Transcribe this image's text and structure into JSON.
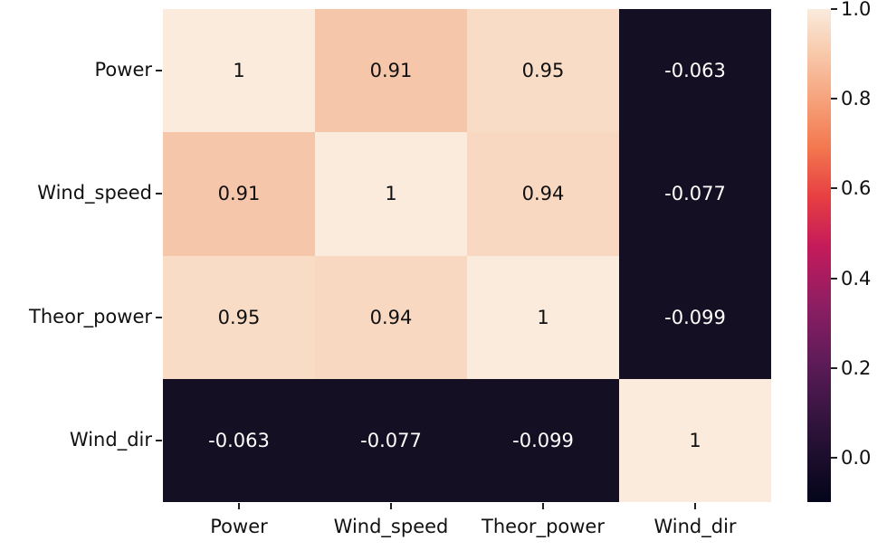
{
  "chart_data": {
    "type": "heatmap",
    "title": "",
    "xlabel": "",
    "ylabel": "",
    "x_labels": [
      "Power",
      "Wind_speed",
      "Theor_power",
      "Wind_dir"
    ],
    "y_labels": [
      "Power",
      "Wind_speed",
      "Theor_power",
      "Wind_dir"
    ],
    "values": [
      [
        1,
        0.91,
        0.95,
        -0.063
      ],
      [
        0.91,
        1,
        0.94,
        -0.077
      ],
      [
        0.95,
        0.94,
        1,
        -0.099
      ],
      [
        -0.063,
        -0.077,
        -0.099,
        1
      ]
    ],
    "annotations": [
      [
        "1",
        "0.91",
        "0.95",
        "-0.063"
      ],
      [
        "0.91",
        "1",
        "0.94",
        "-0.077"
      ],
      [
        "0.95",
        "0.94",
        "1",
        "-0.099"
      ],
      [
        "-0.063",
        "-0.077",
        "-0.099",
        "1"
      ]
    ],
    "colorbar": {
      "colormap": "rocket",
      "range": [
        -0.099,
        1.0
      ],
      "ticks": [
        "1.0",
        "0.8",
        "0.6",
        "0.4",
        "0.2",
        "0.0"
      ]
    },
    "cell_colors": {
      "1": "#faebdd",
      "0.95": "#f9dcc6",
      "0.94": "#f8d8c1",
      "0.91": "#f5c6aa",
      "negative": "#140f22"
    }
  }
}
